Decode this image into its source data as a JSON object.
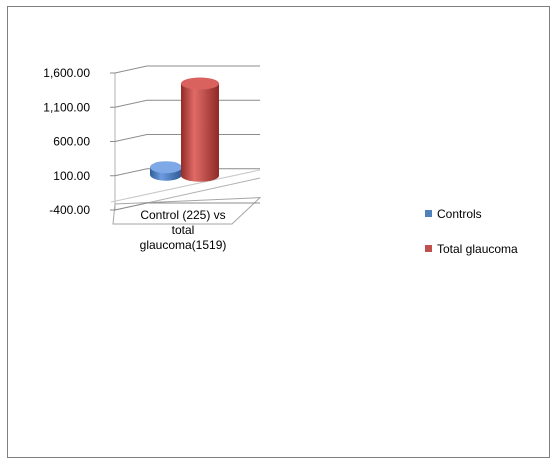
{
  "chart_data": {
    "type": "bar",
    "title": "",
    "xlabel": "",
    "ylabel": "",
    "categories": [
      "Control (225) vs total glaucoma(1519)"
    ],
    "category_lines": [
      "Control (225) vs",
      "total",
      "glaucoma(1519)"
    ],
    "ylim": [
      -400,
      1600
    ],
    "ticks": [
      "1,600.00",
      "1,100.00",
      "600.00",
      "100.00",
      "-400.00"
    ],
    "tick_values": [
      1600,
      1100,
      600,
      100,
      -400
    ],
    "series": [
      {
        "name": "Controls",
        "values": [
          225
        ],
        "color": "#4f81bd"
      },
      {
        "name": "Total glaucoma",
        "values": [
          1519
        ],
        "color": "#c0504d"
      }
    ],
    "legend_position": "right",
    "style": "3d-cylinder",
    "grid": true
  }
}
